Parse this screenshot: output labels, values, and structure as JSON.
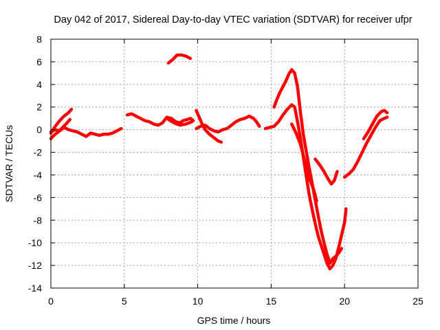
{
  "chart_data": {
    "type": "scatter",
    "title": "Day 042 of 2017, Sidereal Day-to-day VTEC variation (SDTVAR) for receiver ufpr",
    "xlabel": "GPS time / hours",
    "ylabel": "SDTVAR / TECUs",
    "xlim": [
      0,
      25
    ],
    "ylim": [
      -14,
      8
    ],
    "xticks": [
      0,
      5,
      10,
      15,
      20,
      25
    ],
    "yticks": [
      -14,
      -12,
      -10,
      -8,
      -6,
      -4,
      -2,
      0,
      2,
      4,
      6,
      8
    ],
    "grid": true,
    "legend": "none",
    "marker_color": "#ff0000",
    "series": [
      {
        "values": [
          [
            0,
            -0.3
          ],
          [
            0.3,
            0.3
          ],
          [
            0.6,
            0.8
          ],
          [
            0.9,
            1.2
          ],
          [
            1.2,
            1.5
          ],
          [
            1.4,
            1.8
          ]
        ]
      },
      {
        "values": [
          [
            0,
            -0.8
          ],
          [
            0.2,
            -0.5
          ],
          [
            0.5,
            -0.2
          ],
          [
            0.8,
            0.2
          ],
          [
            1.1,
            0.6
          ],
          [
            1.3,
            0.9
          ]
        ]
      },
      {
        "values": [
          [
            0,
            -0.2
          ],
          [
            0.3,
            0.0
          ],
          [
            0.6,
            -0.1
          ],
          [
            0.9,
            0.2
          ],
          [
            1.2,
            0.0
          ],
          [
            1.5,
            -0.1
          ],
          [
            1.8,
            -0.2
          ],
          [
            2.1,
            -0.4
          ],
          [
            2.4,
            -0.6
          ],
          [
            2.7,
            -0.3
          ],
          [
            3.0,
            -0.4
          ],
          [
            3.3,
            -0.5
          ],
          [
            3.6,
            -0.4
          ],
          [
            3.9,
            -0.4
          ],
          [
            4.2,
            -0.3
          ],
          [
            4.5,
            -0.1
          ],
          [
            4.8,
            0.1
          ]
        ]
      },
      {
        "values": [
          [
            5.2,
            1.3
          ],
          [
            5.5,
            1.4
          ],
          [
            5.8,
            1.2
          ],
          [
            6.1,
            1.0
          ],
          [
            6.4,
            0.8
          ],
          [
            6.7,
            0.7
          ],
          [
            7.0,
            0.5
          ],
          [
            7.3,
            0.4
          ],
          [
            7.6,
            0.6
          ],
          [
            7.9,
            1.1
          ],
          [
            8.2,
            1.0
          ],
          [
            8.5,
            0.7
          ],
          [
            8.8,
            0.6
          ],
          [
            9.0,
            0.8
          ],
          [
            9.3,
            0.9
          ],
          [
            9.5,
            1.0
          ],
          [
            9.7,
            0.8
          ]
        ]
      },
      {
        "values": [
          [
            8.0,
            0.9
          ],
          [
            8.4,
            0.6
          ],
          [
            8.8,
            0.4
          ],
          [
            9.2,
            0.5
          ],
          [
            9.6,
            0.7
          ]
        ]
      },
      {
        "values": [
          [
            8.0,
            5.9
          ],
          [
            8.3,
            6.2
          ],
          [
            8.6,
            6.6
          ],
          [
            8.9,
            6.6
          ],
          [
            9.2,
            6.5
          ],
          [
            9.5,
            6.3
          ]
        ]
      },
      {
        "values": [
          [
            9.9,
            1.7
          ],
          [
            10.1,
            1.1
          ],
          [
            10.3,
            0.5
          ],
          [
            10.5,
            0.0
          ],
          [
            10.8,
            -0.4
          ],
          [
            11.1,
            -0.7
          ],
          [
            11.4,
            -1.0
          ],
          [
            11.6,
            -1.1
          ]
        ]
      },
      {
        "values": [
          [
            9.9,
            0.1
          ],
          [
            10.2,
            0.3
          ],
          [
            10.5,
            0.4
          ],
          [
            10.8,
            0.1
          ],
          [
            11.1,
            -0.1
          ],
          [
            11.4,
            -0.2
          ],
          [
            11.7,
            0.0
          ],
          [
            12.0,
            0.1
          ],
          [
            12.3,
            0.4
          ],
          [
            12.6,
            0.7
          ],
          [
            12.9,
            0.9
          ],
          [
            13.2,
            1.0
          ],
          [
            13.5,
            1.2
          ],
          [
            13.8,
            1.0
          ],
          [
            14.0,
            0.7
          ],
          [
            14.2,
            0.3
          ]
        ]
      },
      {
        "values": [
          [
            14.6,
            0.1
          ],
          [
            14.9,
            0.2
          ],
          [
            15.2,
            0.3
          ],
          [
            15.5,
            0.7
          ],
          [
            15.8,
            1.3
          ],
          [
            16.1,
            1.8
          ],
          [
            16.4,
            2.2
          ],
          [
            16.6,
            2.0
          ],
          [
            16.8,
            0.7
          ],
          [
            17.0,
            -0.8
          ],
          [
            17.2,
            -2.5
          ],
          [
            17.4,
            -4.2
          ],
          [
            17.6,
            -5.8
          ],
          [
            17.8,
            -7.1
          ],
          [
            18.0,
            -8.3
          ],
          [
            18.2,
            -9.4
          ],
          [
            18.4,
            -10.2
          ],
          [
            18.6,
            -11.0
          ],
          [
            18.8,
            -11.8
          ],
          [
            19.0,
            -12.3
          ],
          [
            19.2,
            -12.0
          ],
          [
            19.4,
            -11.4
          ],
          [
            19.6,
            -10.4
          ],
          [
            19.8,
            -9.3
          ],
          [
            20.0,
            -8.2
          ],
          [
            20.1,
            -7.0
          ]
        ]
      },
      {
        "values": [
          [
            15.2,
            2.0
          ],
          [
            15.4,
            2.7
          ],
          [
            15.6,
            3.3
          ],
          [
            15.8,
            3.8
          ],
          [
            16.0,
            4.3
          ],
          [
            16.2,
            4.9
          ],
          [
            16.4,
            5.3
          ],
          [
            16.6,
            5.0
          ],
          [
            16.8,
            3.8
          ],
          [
            17.0,
            1.5
          ],
          [
            17.2,
            -0.5
          ],
          [
            17.4,
            -2.0
          ],
          [
            17.6,
            -3.4
          ],
          [
            17.8,
            -4.8
          ],
          [
            18.0,
            -6.2
          ],
          [
            18.2,
            -7.6
          ],
          [
            18.4,
            -8.9
          ],
          [
            18.6,
            -10.0
          ],
          [
            18.8,
            -11.0
          ],
          [
            19.0,
            -11.8
          ],
          [
            19.2,
            -11.4
          ],
          [
            19.4,
            -11.2
          ],
          [
            19.6,
            -10.9
          ],
          [
            19.8,
            -10.5
          ]
        ]
      },
      {
        "values": [
          [
            16.4,
            0.5
          ],
          [
            16.7,
            -0.3
          ],
          [
            17.0,
            -1.3
          ],
          [
            17.3,
            -2.8
          ],
          [
            17.6,
            -4.3
          ],
          [
            17.9,
            -5.3
          ],
          [
            18.1,
            -6.3
          ]
        ]
      },
      {
        "values": [
          [
            18.0,
            -2.6
          ],
          [
            18.3,
            -3.1
          ],
          [
            18.6,
            -3.7
          ],
          [
            18.9,
            -4.4
          ],
          [
            19.1,
            -4.8
          ],
          [
            19.3,
            -4.5
          ],
          [
            19.5,
            -3.7
          ]
        ]
      },
      {
        "values": [
          [
            20.0,
            -4.2
          ],
          [
            20.3,
            -3.9
          ],
          [
            20.6,
            -3.5
          ],
          [
            20.9,
            -2.8
          ],
          [
            21.2,
            -2.0
          ],
          [
            21.5,
            -1.2
          ],
          [
            21.8,
            -0.5
          ],
          [
            22.1,
            0.2
          ],
          [
            22.4,
            0.8
          ],
          [
            22.7,
            1.0
          ],
          [
            22.9,
            1.1
          ]
        ]
      },
      {
        "values": [
          [
            21.3,
            -0.8
          ],
          [
            21.6,
            -0.2
          ],
          [
            21.9,
            0.5
          ],
          [
            22.2,
            1.2
          ],
          [
            22.5,
            1.6
          ],
          [
            22.7,
            1.7
          ],
          [
            22.9,
            1.5
          ]
        ]
      }
    ]
  }
}
